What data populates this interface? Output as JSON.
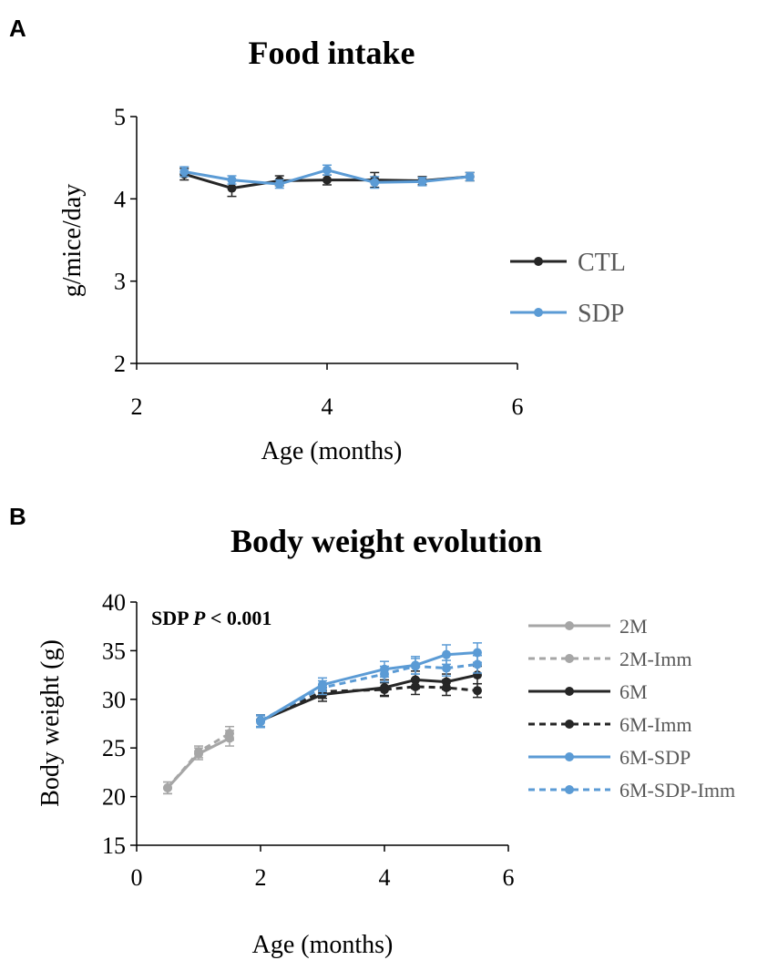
{
  "chart_data": [
    {
      "panel": "A",
      "type": "line",
      "title": "Food intake",
      "xlabel": "Age (months)",
      "ylabel": "g/mice/day",
      "xlim": [
        2,
        6
      ],
      "ylim": [
        2,
        5
      ],
      "xticks": [
        "2",
        "4",
        "6"
      ],
      "yticks": [
        "2",
        "3",
        "4",
        "5"
      ],
      "series": [
        {
          "name": "CTL",
          "color": "#262626",
          "dashed": false,
          "x": [
            2.5,
            3.0,
            3.5,
            4.0,
            4.5,
            5.0,
            5.5
          ],
          "y": [
            4.3,
            4.13,
            4.22,
            4.23,
            4.23,
            4.22,
            4.27
          ],
          "err": [
            0.07,
            0.1,
            0.06,
            0.06,
            0.09,
            0.05,
            0.05
          ]
        },
        {
          "name": "SDP",
          "color": "#5b9bd5",
          "dashed": false,
          "x": [
            2.5,
            3.0,
            3.5,
            4.0,
            4.5,
            5.0,
            5.5
          ],
          "y": [
            4.33,
            4.23,
            4.18,
            4.35,
            4.2,
            4.21,
            4.27
          ],
          "err": [
            0.06,
            0.05,
            0.05,
            0.06,
            0.07,
            0.05,
            0.05
          ]
        }
      ]
    },
    {
      "panel": "B",
      "type": "line",
      "title": "Body weight evolution",
      "annotation_bold": "SDP ",
      "annotation_italic": "P",
      "annotation_rest": " < 0.001",
      "xlabel": "Age (months)",
      "ylabel": "Body weight (g)",
      "xlim": [
        0,
        6
      ],
      "ylim": [
        15,
        40
      ],
      "xticks": [
        "0",
        "2",
        "4",
        "6"
      ],
      "yticks": [
        "15",
        "20",
        "25",
        "30",
        "35",
        "40"
      ],
      "series": [
        {
          "name": "2M",
          "color": "#a6a6a6",
          "dashed": false,
          "x": [
            0.5,
            1.0,
            1.5
          ],
          "y": [
            20.9,
            24.4,
            26.0
          ],
          "err": [
            0.6,
            0.6,
            0.8
          ]
        },
        {
          "name": "2M-Imm",
          "color": "#a6a6a6",
          "dashed": true,
          "x": [
            0.5,
            1.0,
            1.5
          ],
          "y": [
            20.9,
            24.6,
            26.5
          ],
          "err": [
            0.6,
            0.6,
            0.7
          ]
        },
        {
          "name": "6M",
          "color": "#262626",
          "dashed": false,
          "x": [
            2.0,
            3.0,
            4.0,
            4.5,
            5.0,
            5.5
          ],
          "y": [
            27.8,
            30.5,
            31.2,
            32.0,
            31.8,
            32.5
          ],
          "err": [
            0.6,
            0.7,
            0.8,
            0.9,
            0.8,
            0.9
          ]
        },
        {
          "name": "6M-Imm",
          "color": "#262626",
          "dashed": true,
          "x": [
            2.0,
            3.0,
            4.0,
            4.5,
            5.0,
            5.5
          ],
          "y": [
            27.8,
            30.8,
            31.0,
            31.3,
            31.2,
            30.9
          ],
          "err": [
            0.6,
            0.7,
            0.7,
            0.8,
            0.8,
            0.7
          ]
        },
        {
          "name": "6M-SDP",
          "color": "#5b9bd5",
          "dashed": false,
          "x": [
            2.0,
            3.0,
            4.0,
            4.5,
            5.0,
            5.5
          ],
          "y": [
            27.7,
            31.5,
            33.1,
            33.5,
            34.6,
            34.8
          ],
          "err": [
            0.6,
            0.7,
            0.8,
            0.9,
            1.0,
            1.0
          ]
        },
        {
          "name": "6M-SDP-Imm",
          "color": "#5b9bd5",
          "dashed": true,
          "x": [
            2.0,
            3.0,
            4.0,
            4.5,
            5.0,
            5.5
          ],
          "y": [
            27.8,
            31.2,
            32.6,
            33.4,
            33.2,
            33.6
          ],
          "err": [
            0.6,
            0.7,
            0.8,
            0.8,
            0.8,
            0.9
          ]
        }
      ]
    }
  ]
}
